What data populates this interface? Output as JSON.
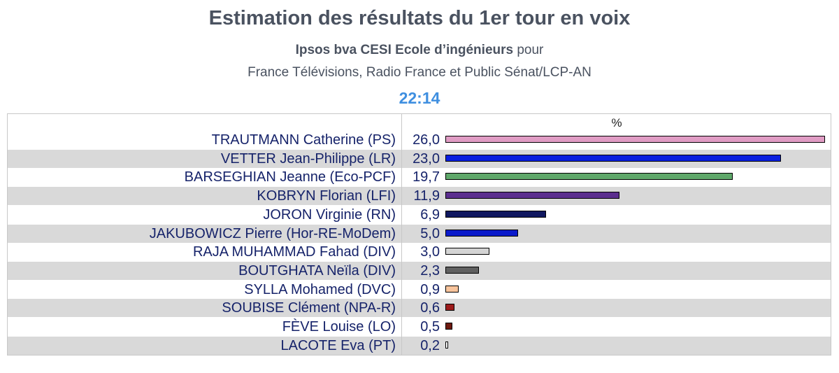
{
  "header": {
    "title": "Estimation des résultats du 1er tour en voix",
    "subtitle_bold": "Ipsos bva CESI Ecole d’ingénieurs",
    "subtitle_rest": " pour",
    "subtitle2": "France Télévisions, Radio France et Public Sénat/LCP-AN",
    "time": "22:14"
  },
  "chart_data": {
    "type": "bar",
    "value_header": "%",
    "xlim": [
      0,
      26
    ],
    "categories": [
      "TRAUTMANN Catherine (PS)",
      "VETTER Jean-Philippe (LR)",
      "BARSEGHIAN Jeanne (Eco-PCF)",
      "KOBRYN Florian (LFI)",
      "JORON Virginie (RN)",
      "JAKUBOWICZ Pierre (Hor-RE-MoDem)",
      "RAJA MUHAMMAD Fahad (DIV)",
      "BOUTGHATA Neïla (DIV)",
      "SYLLA Mohamed (DVC)",
      "SOUBISE Clément (NPA-R)",
      "FÈVE Louise (LO)",
      "LACOTE Eva (PT)"
    ],
    "values": [
      26.0,
      23.0,
      19.7,
      11.9,
      6.9,
      5.0,
      3.0,
      2.3,
      0.9,
      0.6,
      0.5,
      0.2
    ],
    "value_labels": [
      "26,0",
      "23,0",
      "19,7",
      "11,9",
      "6,9",
      "5,0",
      "3,0",
      "2,3",
      "0,9",
      "0,6",
      "0,5",
      "0,2"
    ],
    "colors": [
      "#e09cc4",
      "#0a1fe0",
      "#5fa86a",
      "#5b2e8e",
      "#101860",
      "#0a1acb",
      "#d4d4d4",
      "#606060",
      "#f8c49c",
      "#9c1b1b",
      "#6e1a10",
      "#ffffff"
    ]
  }
}
